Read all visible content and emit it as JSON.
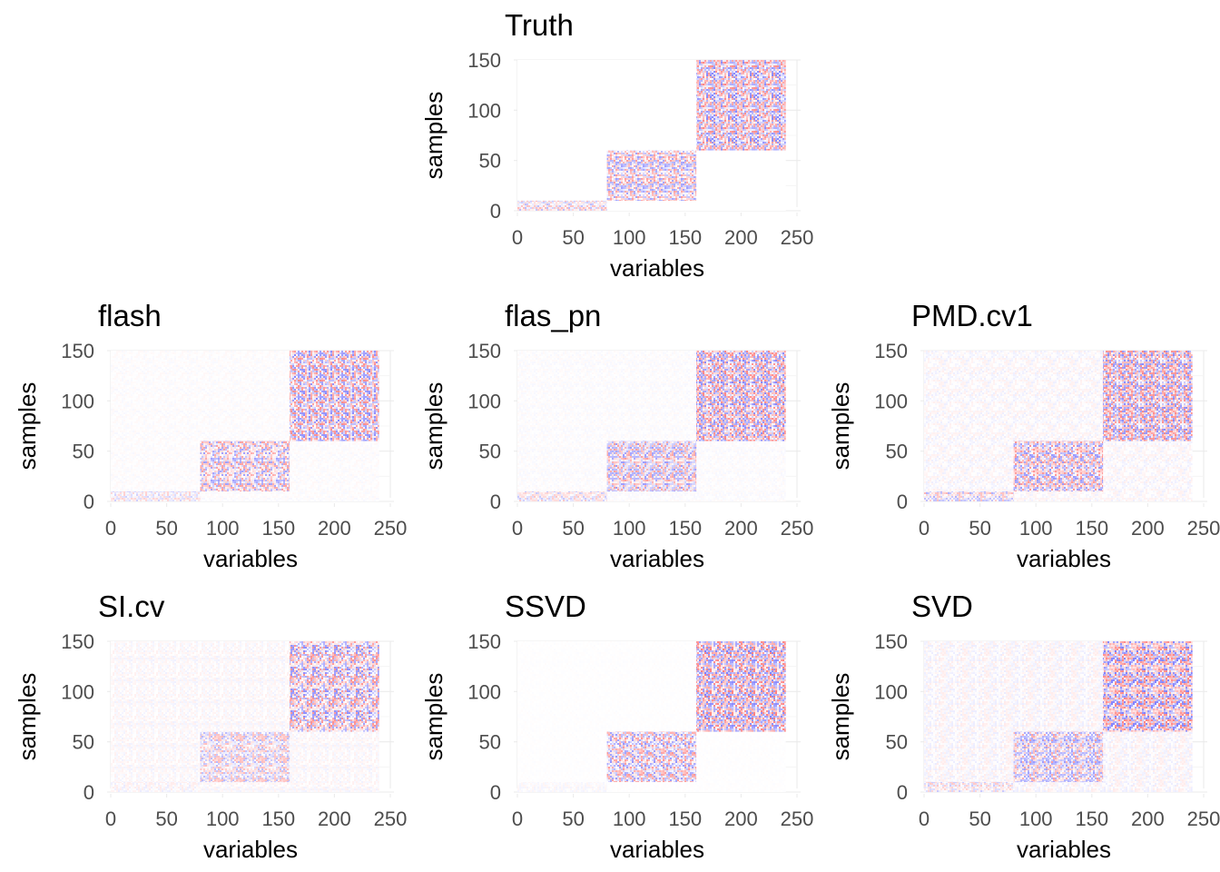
{
  "chart_data": [
    {
      "type": "heatmap",
      "title": "Truth",
      "xlabel": "variables",
      "ylabel": "samples",
      "xlim": [
        0,
        250
      ],
      "ylim": [
        0,
        150
      ],
      "xticks": [
        0,
        50,
        100,
        150,
        200,
        250
      ],
      "yticks": [
        0,
        50,
        100,
        150
      ],
      "background_intensity": 0.0,
      "blocks": [
        {
          "x": [
            0,
            80
          ],
          "y": [
            0,
            10
          ],
          "intensity": 0.5
        },
        {
          "x": [
            80,
            160
          ],
          "y": [
            10,
            60
          ],
          "intensity": 0.7
        },
        {
          "x": [
            160,
            240
          ],
          "y": [
            60,
            150
          ],
          "intensity": 0.85
        }
      ]
    },
    {
      "type": "heatmap",
      "title": "flash",
      "xlabel": "variables",
      "ylabel": "samples",
      "xlim": [
        0,
        250
      ],
      "ylim": [
        0,
        150
      ],
      "xticks": [
        0,
        50,
        100,
        150,
        200,
        250
      ],
      "yticks": [
        0,
        50,
        100,
        150
      ],
      "background_intensity": 0.05,
      "blocks": [
        {
          "x": [
            0,
            80
          ],
          "y": [
            0,
            10
          ],
          "intensity": 0.35
        },
        {
          "x": [
            80,
            160
          ],
          "y": [
            10,
            60
          ],
          "intensity": 0.7
        },
        {
          "x": [
            160,
            240
          ],
          "y": [
            60,
            150
          ],
          "intensity": 0.85
        }
      ]
    },
    {
      "type": "heatmap",
      "title": "flas_pn",
      "xlabel": "variables",
      "ylabel": "samples",
      "xlim": [
        0,
        250
      ],
      "ylim": [
        0,
        150
      ],
      "xticks": [
        0,
        50,
        100,
        150,
        200,
        250
      ],
      "yticks": [
        0,
        50,
        100,
        150
      ],
      "background_intensity": 0.05,
      "blocks": [
        {
          "x": [
            0,
            80
          ],
          "y": [
            0,
            10
          ],
          "intensity": 0.4
        },
        {
          "x": [
            80,
            160
          ],
          "y": [
            10,
            60
          ],
          "intensity": 0.7
        },
        {
          "x": [
            160,
            240
          ],
          "y": [
            60,
            150
          ],
          "intensity": 0.85
        }
      ]
    },
    {
      "type": "heatmap",
      "title": "PMD.cv1",
      "xlabel": "variables",
      "ylabel": "samples",
      "xlim": [
        0,
        250
      ],
      "ylim": [
        0,
        150
      ],
      "xticks": [
        0,
        50,
        100,
        150,
        200,
        250
      ],
      "yticks": [
        0,
        50,
        100,
        150
      ],
      "background_intensity": 0.12,
      "blocks": [
        {
          "x": [
            0,
            80
          ],
          "y": [
            0,
            10
          ],
          "intensity": 0.55
        },
        {
          "x": [
            80,
            160
          ],
          "y": [
            10,
            60
          ],
          "intensity": 0.75
        },
        {
          "x": [
            160,
            240
          ],
          "y": [
            60,
            150
          ],
          "intensity": 0.85
        }
      ]
    },
    {
      "type": "heatmap",
      "title": "SI.cv",
      "xlabel": "variables",
      "ylabel": "samples",
      "xlim": [
        0,
        250
      ],
      "ylim": [
        0,
        150
      ],
      "xticks": [
        0,
        50,
        100,
        150,
        200,
        250
      ],
      "yticks": [
        0,
        50,
        100,
        150
      ],
      "background_intensity": 0.1,
      "blocks": [
        {
          "x": [
            0,
            80
          ],
          "y": [
            0,
            10
          ],
          "intensity": 0.15
        },
        {
          "x": [
            80,
            160
          ],
          "y": [
            10,
            60
          ],
          "intensity": 0.5
        },
        {
          "x": [
            160,
            240
          ],
          "y": [
            60,
            150
          ],
          "intensity": 0.8
        }
      ]
    },
    {
      "type": "heatmap",
      "title": "SSVD",
      "xlabel": "variables",
      "ylabel": "samples",
      "xlim": [
        0,
        250
      ],
      "ylim": [
        0,
        150
      ],
      "xticks": [
        0,
        50,
        100,
        150,
        200,
        250
      ],
      "yticks": [
        0,
        50,
        100,
        150
      ],
      "background_intensity": 0.02,
      "blocks": [
        {
          "x": [
            0,
            80
          ],
          "y": [
            0,
            10
          ],
          "intensity": 0.08
        },
        {
          "x": [
            80,
            160
          ],
          "y": [
            10,
            60
          ],
          "intensity": 0.75
        },
        {
          "x": [
            160,
            240
          ],
          "y": [
            60,
            150
          ],
          "intensity": 0.9
        }
      ]
    },
    {
      "type": "heatmap",
      "title": "SVD",
      "xlabel": "variables",
      "ylabel": "samples",
      "xlim": [
        0,
        250
      ],
      "ylim": [
        0,
        150
      ],
      "xticks": [
        0,
        50,
        100,
        150,
        200,
        250
      ],
      "yticks": [
        0,
        50,
        100,
        150
      ],
      "background_intensity": 0.14,
      "blocks": [
        {
          "x": [
            0,
            80
          ],
          "y": [
            0,
            10
          ],
          "intensity": 0.4
        },
        {
          "x": [
            80,
            160
          ],
          "y": [
            10,
            60
          ],
          "intensity": 0.7
        },
        {
          "x": [
            160,
            240
          ],
          "y": [
            60,
            150
          ],
          "intensity": 0.9
        }
      ]
    }
  ],
  "colors": {
    "positive": "#ff0000",
    "negative": "#0000ff",
    "zero": "#ffffff",
    "grid": "#ebebeb",
    "tick_text": "#4d4d4d",
    "title_text": "#000000"
  }
}
